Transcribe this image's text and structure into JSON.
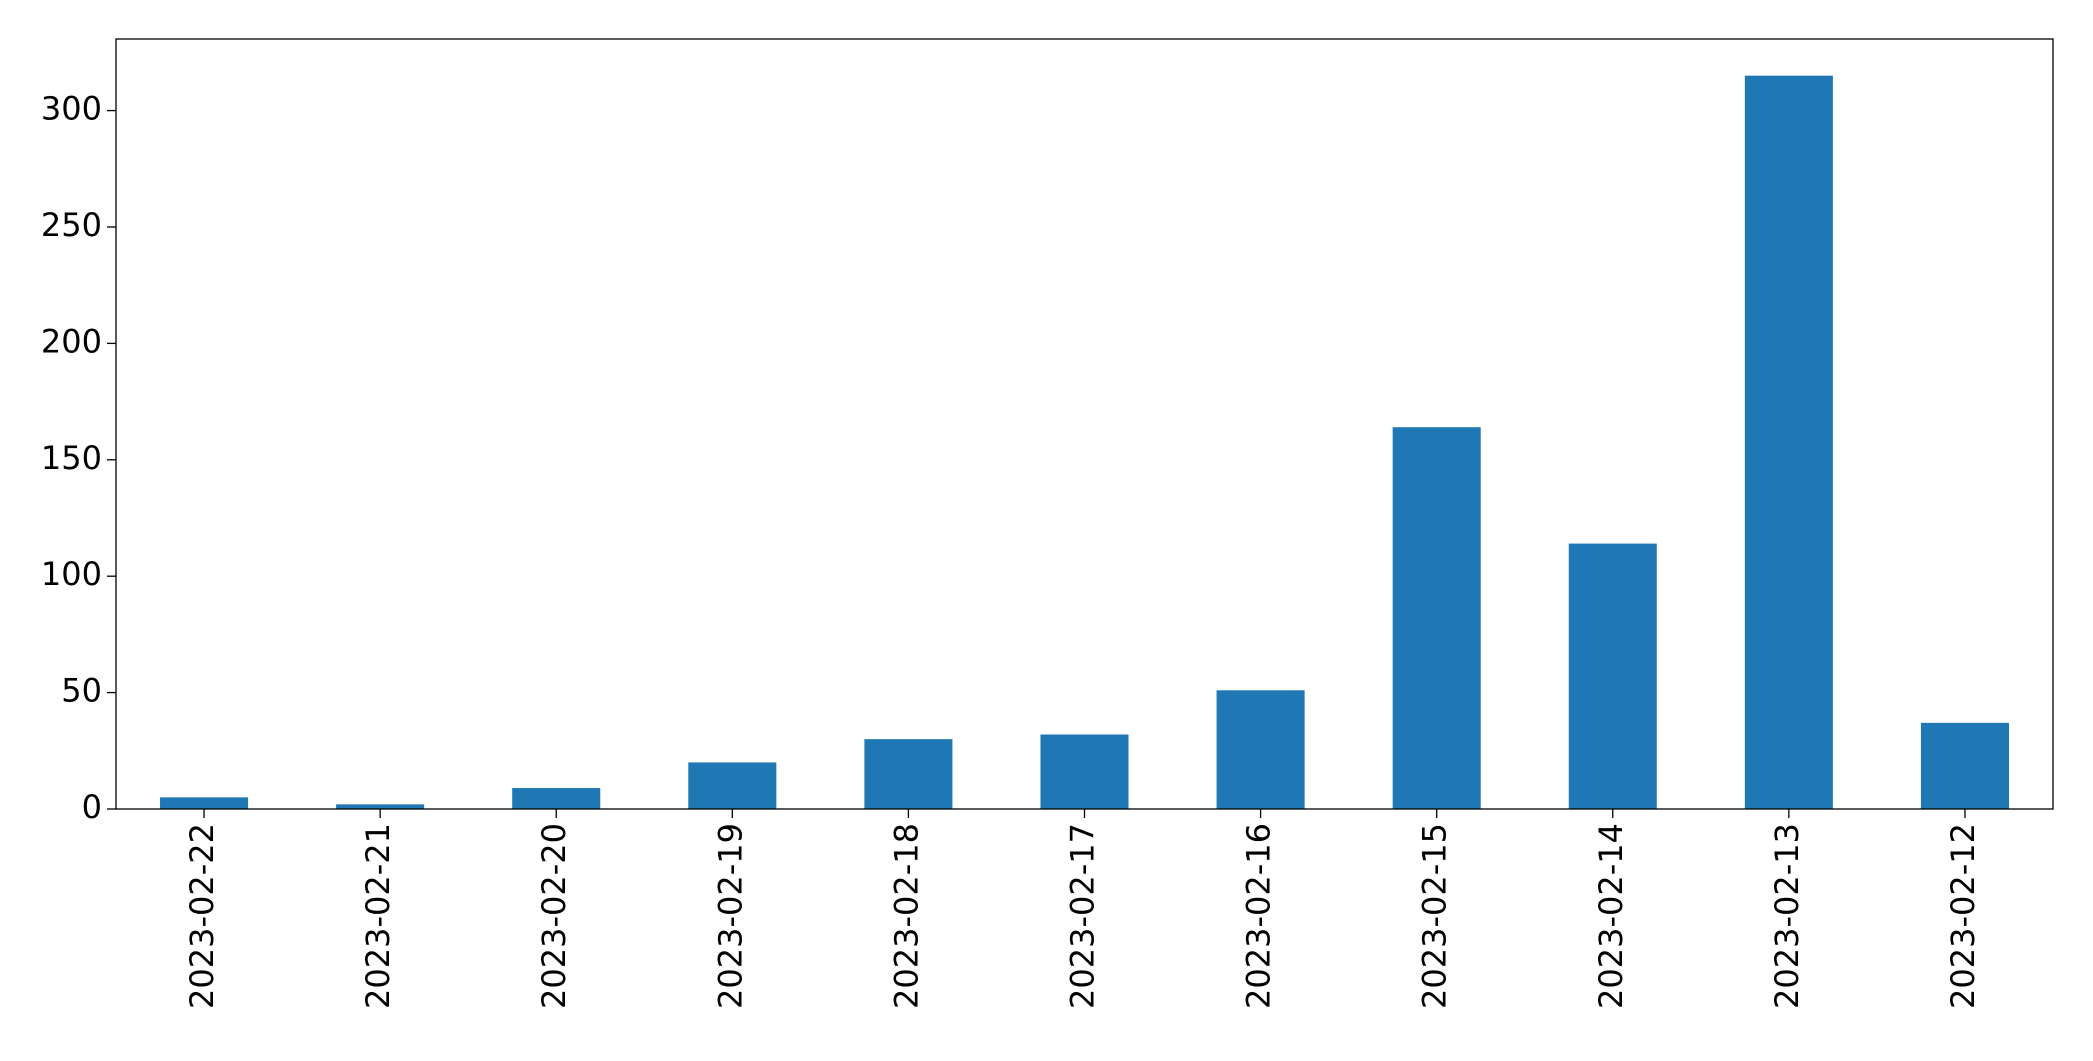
{
  "chart_data": {
    "type": "bar",
    "categories": [
      "2023-02-22",
      "2023-02-21",
      "2023-02-20",
      "2023-02-19",
      "2023-02-18",
      "2023-02-17",
      "2023-02-16",
      "2023-02-15",
      "2023-02-14",
      "2023-02-13",
      "2023-02-12"
    ],
    "values": [
      5,
      2,
      9,
      20,
      30,
      32,
      51,
      164,
      114,
      315,
      37
    ],
    "color": "#1f77b4",
    "ylim": [
      0,
      330.75
    ],
    "yticks": [
      0,
      50,
      100,
      150,
      200,
      250,
      300
    ],
    "grid": false
  }
}
